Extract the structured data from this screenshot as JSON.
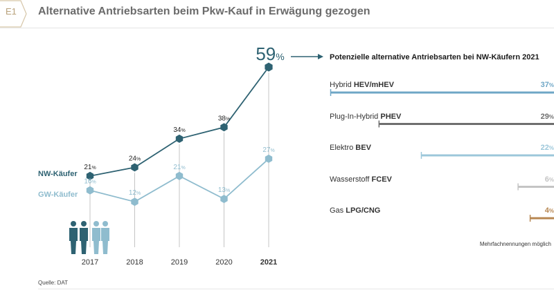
{
  "header": {
    "badge": "E1",
    "title": "Alternative Antriebsarten beim Pkw-Kauf in Erwägung gezogen"
  },
  "highlight": {
    "value": "59",
    "unit": "%"
  },
  "chart_data": [
    {
      "type": "line",
      "categories": [
        "2017",
        "2018",
        "2019",
        "2020",
        "2021"
      ],
      "highlight_category": "2021",
      "unit": "%",
      "ylim": [
        0,
        60
      ],
      "grid": false,
      "series": [
        {
          "name": "NW-Käufer",
          "values": [
            21,
            24,
            34,
            38,
            59
          ],
          "color": "#2e6272"
        },
        {
          "name": "GW-Käufer",
          "values": [
            16,
            12,
            21,
            13,
            27
          ],
          "color": "#8fbcce"
        }
      ]
    },
    {
      "type": "bar",
      "orientation": "horizontal",
      "title": "Potenzielle alternative Antriebsarten bei NW-Käufern 2021",
      "unit": "%",
      "note": "Mehrfachnennungen möglich",
      "xlim": [
        0,
        37
      ],
      "bars": [
        {
          "label": "Hybrid",
          "label_bold": "HEV/mHEV",
          "value": 37,
          "color": "#6ea6c6"
        },
        {
          "label": "Plug-In-Hybrid",
          "label_bold": "PHEV",
          "value": 29,
          "color": "#6e6e6e"
        },
        {
          "label": "Elektro",
          "label_bold": "BEV",
          "value": 22,
          "color": "#9cc7da"
        },
        {
          "label": "Wasserstoff",
          "label_bold": "FCEV",
          "value": 6,
          "color": "#c4c4c4"
        },
        {
          "label": "Gas",
          "label_bold": "LPG/CNG",
          "value": 4,
          "color": "#b78752"
        }
      ]
    }
  ],
  "colors": {
    "nw": "#2e6272",
    "gw": "#8fbcce",
    "accent": "#b8a17a",
    "arrow": "#2e6272"
  },
  "source": "Quelle: DAT"
}
